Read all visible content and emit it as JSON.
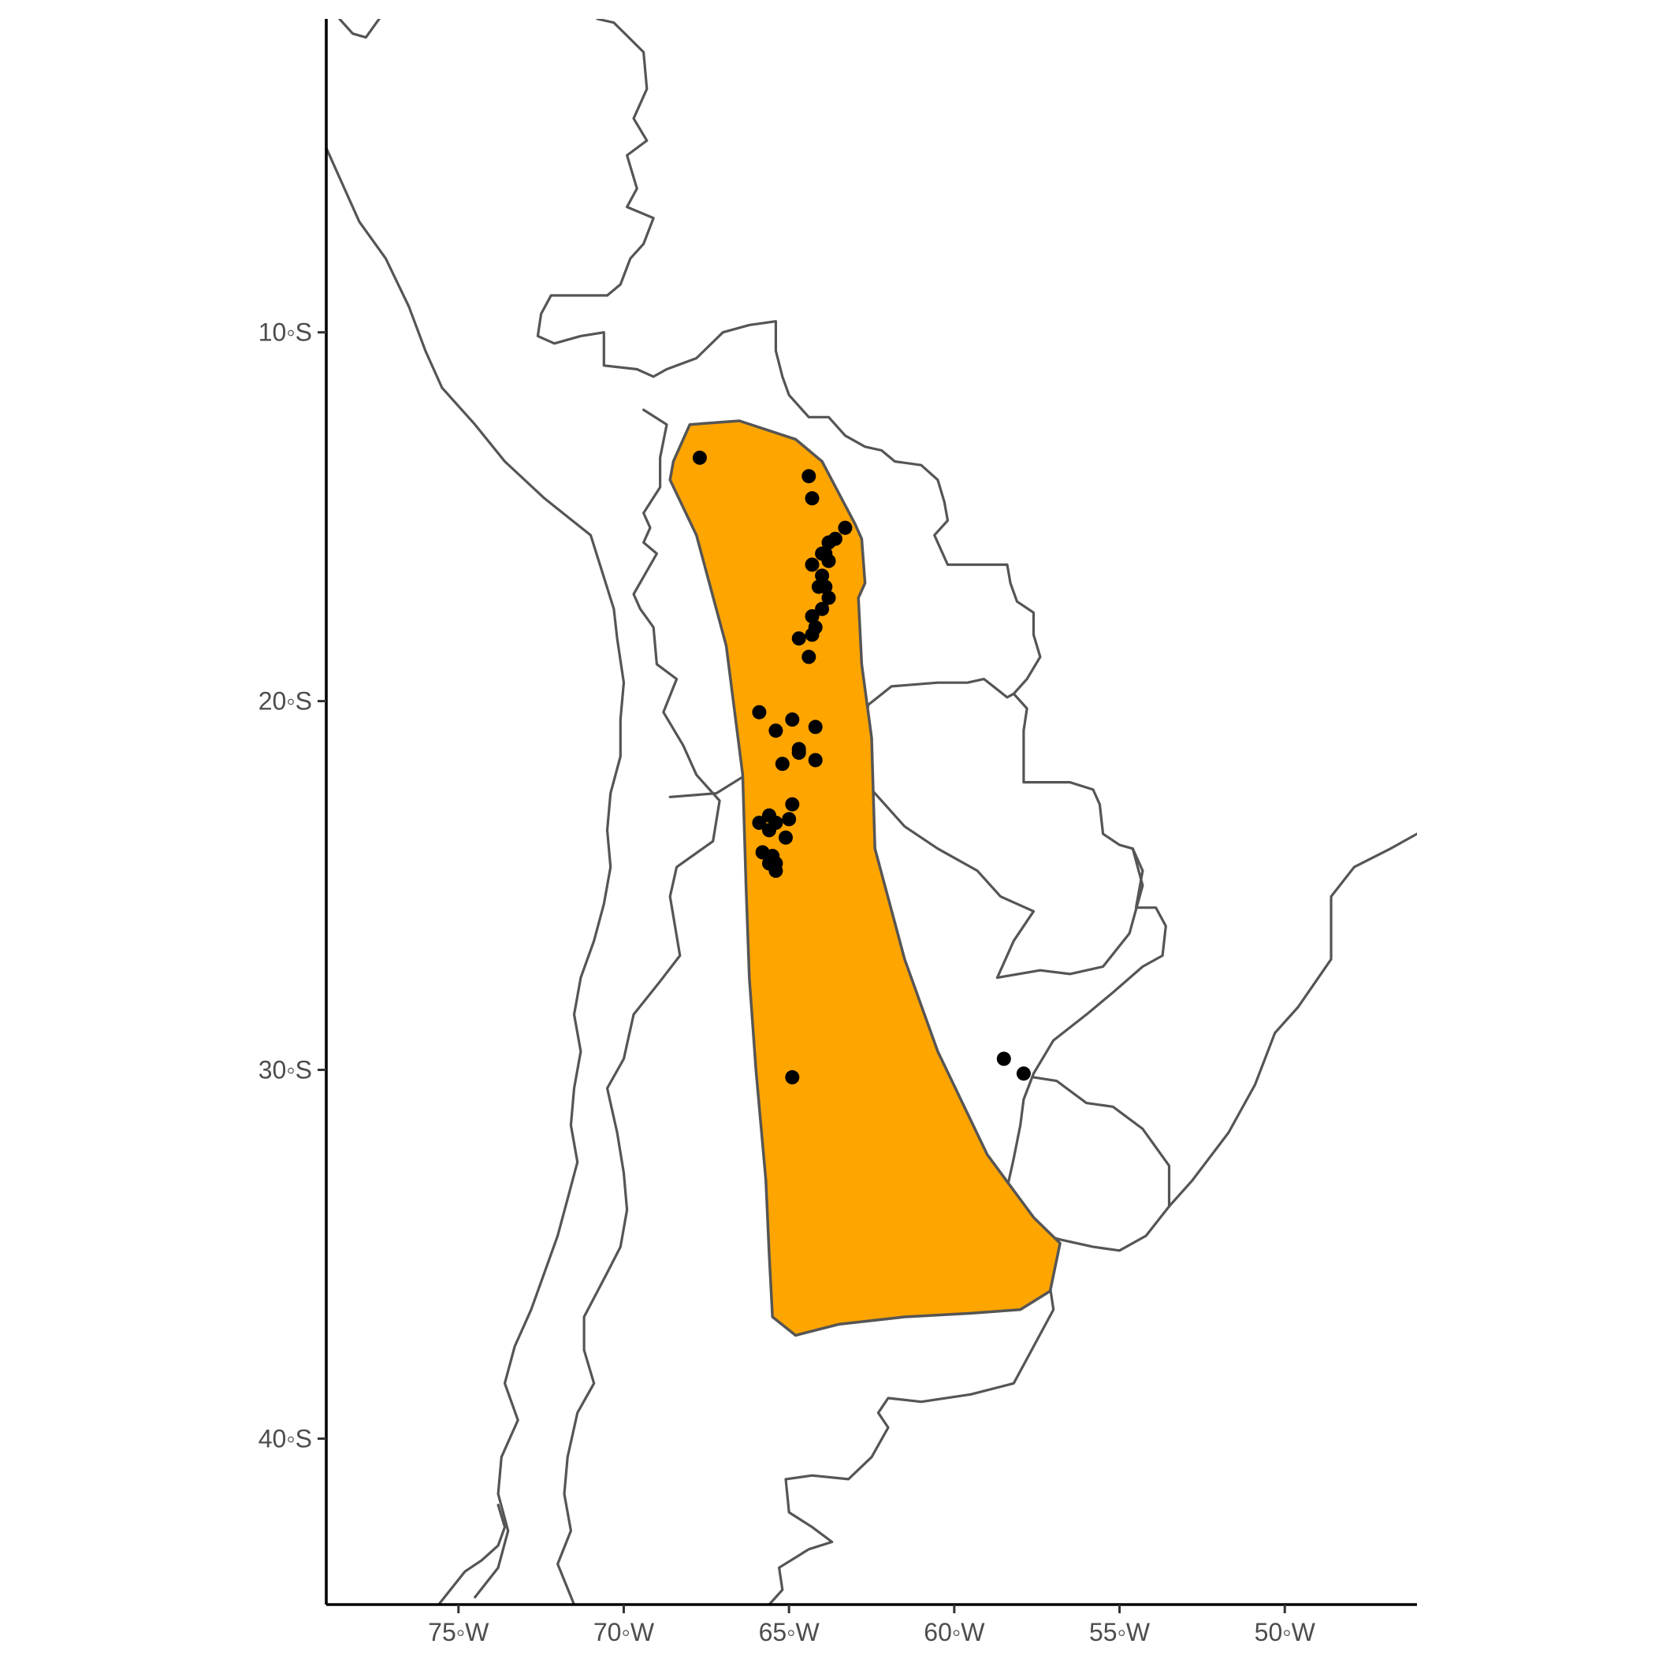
{
  "map": {
    "axes": {
      "x": {
        "range": [
          -79,
          -46
        ],
        "ticks": [
          {
            "value": -75,
            "label": "75◦W"
          },
          {
            "value": -70,
            "label": "70◦W"
          },
          {
            "value": -65,
            "label": "65◦W"
          },
          {
            "value": -60,
            "label": "60◦W"
          },
          {
            "value": -55,
            "label": "55◦W"
          },
          {
            "value": -50,
            "label": "50◦W"
          }
        ]
      },
      "y": {
        "range": [
          -44.5,
          -1.5
        ],
        "ticks": [
          {
            "value": -10,
            "label": "10◦S"
          },
          {
            "value": -20,
            "label": "20◦S"
          },
          {
            "value": -30,
            "label": "30◦S"
          },
          {
            "value": -40,
            "label": "40◦S"
          }
        ]
      }
    },
    "colors": {
      "range_fill": "#FFA500",
      "range_outline": "#555555",
      "border": "#555555",
      "points": "#000000"
    },
    "range_polygon": [
      [
        -68.5,
        -13.5
      ],
      [
        -68.0,
        -12.5
      ],
      [
        -66.5,
        -12.4
      ],
      [
        -64.8,
        -12.9
      ],
      [
        -64.0,
        -13.5
      ],
      [
        -63.0,
        -15.2
      ],
      [
        -62.8,
        -15.6
      ],
      [
        -62.7,
        -16.8
      ],
      [
        -62.9,
        -17.2
      ],
      [
        -62.8,
        -19.0
      ],
      [
        -62.5,
        -21.0
      ],
      [
        -62.4,
        -24.0
      ],
      [
        -61.5,
        -27.0
      ],
      [
        -60.5,
        -29.5
      ],
      [
        -59.0,
        -32.3
      ],
      [
        -57.6,
        -34.0
      ],
      [
        -56.8,
        -34.7
      ],
      [
        -57.1,
        -36.0
      ],
      [
        -58.0,
        -36.5
      ],
      [
        -59.5,
        -36.6
      ],
      [
        -61.5,
        -36.7
      ],
      [
        -63.5,
        -36.9
      ],
      [
        -64.8,
        -37.2
      ],
      [
        -65.5,
        -36.7
      ],
      [
        -65.6,
        -35.0
      ],
      [
        -65.7,
        -33.0
      ],
      [
        -66.0,
        -30.0
      ],
      [
        -66.2,
        -27.5
      ],
      [
        -66.3,
        -25.0
      ],
      [
        -66.4,
        -22.0
      ],
      [
        -66.9,
        -18.5
      ],
      [
        -67.8,
        -15.5
      ],
      [
        -68.6,
        -14.0
      ]
    ],
    "occurrences": [
      [
        -67.7,
        -13.4
      ],
      [
        -64.4,
        -13.9
      ],
      [
        -64.3,
        -14.5
      ],
      [
        -63.3,
        -15.3
      ],
      [
        -63.6,
        -15.6
      ],
      [
        -63.8,
        -15.7
      ],
      [
        -63.9,
        -16.0
      ],
      [
        -64.0,
        -16.0
      ],
      [
        -63.8,
        -16.2
      ],
      [
        -64.3,
        -16.3
      ],
      [
        -64.0,
        -16.6
      ],
      [
        -63.9,
        -16.9
      ],
      [
        -64.1,
        -16.9
      ],
      [
        -63.8,
        -17.2
      ],
      [
        -64.3,
        -17.7
      ],
      [
        -64.2,
        -18.0
      ],
      [
        -64.3,
        -18.2
      ],
      [
        -64.0,
        -17.5
      ],
      [
        -64.7,
        -18.3
      ],
      [
        -64.4,
        -18.8
      ],
      [
        -65.9,
        -20.3
      ],
      [
        -64.9,
        -20.5
      ],
      [
        -64.2,
        -20.7
      ],
      [
        -65.4,
        -20.8
      ],
      [
        -64.7,
        -21.4
      ],
      [
        -64.7,
        -21.3
      ],
      [
        -64.2,
        -21.6
      ],
      [
        -65.2,
        -21.7
      ],
      [
        -64.9,
        -22.8
      ],
      [
        -65.6,
        -23.1
      ],
      [
        -65.0,
        -23.2
      ],
      [
        -65.9,
        -23.3
      ],
      [
        -65.4,
        -23.3
      ],
      [
        -65.6,
        -23.5
      ],
      [
        -65.1,
        -23.7
      ],
      [
        -65.8,
        -24.1
      ],
      [
        -65.5,
        -24.2
      ],
      [
        -65.4,
        -24.4
      ],
      [
        -65.6,
        -24.4
      ],
      [
        -65.4,
        -24.6
      ],
      [
        -58.5,
        -29.7
      ],
      [
        -57.9,
        -30.1
      ],
      [
        -64.9,
        -30.2
      ]
    ],
    "borders": [
      [
        [
          -78.6,
          -1.5
        ],
        [
          -78.2,
          -1.9
        ],
        [
          -77.8,
          -2.0
        ],
        [
          -77.4,
          -1.5
        ]
      ],
      [
        [
          -70.8,
          -1.5
        ],
        [
          -70.3,
          -1.6
        ],
        [
          -69.4,
          -2.4
        ],
        [
          -69.3,
          -3.4
        ],
        [
          -69.7,
          -4.2
        ],
        [
          -69.3,
          -4.8
        ],
        [
          -69.9,
          -5.2
        ],
        [
          -69.6,
          -6.1
        ],
        [
          -69.9,
          -6.6
        ],
        [
          -69.1,
          -6.9
        ],
        [
          -69.4,
          -7.6
        ],
        [
          -69.8,
          -8.0
        ],
        [
          -70.1,
          -8.7
        ],
        [
          -70.5,
          -9.0
        ],
        [
          -71.4,
          -9.0
        ],
        [
          -72.2,
          -9.0
        ],
        [
          -72.5,
          -9.5
        ],
        [
          -72.6,
          -10.1
        ],
        [
          -72.1,
          -10.3
        ],
        [
          -71.3,
          -10.1
        ],
        [
          -70.6,
          -10.0
        ],
        [
          -70.6,
          -10.9
        ],
        [
          -69.6,
          -11.0
        ],
        [
          -69.1,
          -11.2
        ],
        [
          -68.7,
          -11.0
        ],
        [
          -67.8,
          -10.7
        ],
        [
          -67.0,
          -10.0
        ],
        [
          -66.2,
          -9.8
        ],
        [
          -65.4,
          -9.7
        ],
        [
          -65.4,
          -10.5
        ],
        [
          -65.2,
          -11.2
        ],
        [
          -65.0,
          -11.7
        ],
        [
          -64.4,
          -12.3
        ],
        [
          -63.8,
          -12.3
        ],
        [
          -63.3,
          -12.8
        ],
        [
          -62.7,
          -13.1
        ],
        [
          -62.2,
          -13.2
        ],
        [
          -61.8,
          -13.5
        ],
        [
          -61.0,
          -13.6
        ],
        [
          -60.5,
          -14.0
        ],
        [
          -60.3,
          -14.6
        ],
        [
          -60.2,
          -15.1
        ],
        [
          -60.6,
          -15.5
        ],
        [
          -60.2,
          -16.3
        ],
        [
          -58.4,
          -16.3
        ],
        [
          -58.3,
          -16.8
        ],
        [
          -58.1,
          -17.3
        ],
        [
          -57.6,
          -17.6
        ],
        [
          -57.6,
          -18.2
        ],
        [
          -57.4,
          -18.8
        ],
        [
          -57.8,
          -19.4
        ],
        [
          -58.2,
          -19.8
        ],
        [
          -57.8,
          -20.2
        ],
        [
          -57.9,
          -20.8
        ],
        [
          -57.9,
          -22.2
        ],
        [
          -56.5,
          -22.2
        ],
        [
          -55.8,
          -22.4
        ],
        [
          -55.6,
          -22.8
        ],
        [
          -55.5,
          -23.6
        ],
        [
          -55.0,
          -23.9
        ],
        [
          -54.6,
          -24.0
        ],
        [
          -54.3,
          -24.6
        ],
        [
          -54.5,
          -25.6
        ],
        [
          -53.9,
          -25.6
        ],
        [
          -53.6,
          -26.1
        ],
        [
          -53.7,
          -26.9
        ],
        [
          -54.3,
          -27.2
        ],
        [
          -55.2,
          -27.9
        ],
        [
          -56.0,
          -28.5
        ],
        [
          -57.0,
          -29.2
        ],
        [
          -57.6,
          -30.1
        ],
        [
          -57.9,
          -30.8
        ],
        [
          -58.0,
          -31.5
        ],
        [
          -58.2,
          -32.4
        ],
        [
          -58.4,
          -33.2
        ],
        [
          -58.4,
          -34.0
        ]
      ],
      [
        [
          -79,
          -5.0
        ],
        [
          -78.5,
          -6.0
        ],
        [
          -78.0,
          -7.0
        ],
        [
          -77.2,
          -8.0
        ],
        [
          -76.5,
          -9.3
        ],
        [
          -76.0,
          -10.5
        ],
        [
          -75.5,
          -11.5
        ],
        [
          -74.5,
          -12.5
        ],
        [
          -73.6,
          -13.5
        ],
        [
          -72.4,
          -14.5
        ],
        [
          -71.0,
          -15.5
        ],
        [
          -70.3,
          -17.5
        ],
        [
          -70.2,
          -18.3
        ],
        [
          -70.0,
          -19.5
        ],
        [
          -70.1,
          -20.5
        ],
        [
          -70.1,
          -21.5
        ],
        [
          -70.4,
          -22.5
        ],
        [
          -70.5,
          -23.5
        ],
        [
          -70.4,
          -24.5
        ],
        [
          -70.6,
          -25.5
        ],
        [
          -70.9,
          -26.5
        ],
        [
          -71.3,
          -27.5
        ],
        [
          -71.5,
          -28.5
        ],
        [
          -71.3,
          -29.5
        ],
        [
          -71.5,
          -30.5
        ],
        [
          -71.6,
          -31.5
        ],
        [
          -71.4,
          -32.5
        ],
        [
          -71.7,
          -33.5
        ],
        [
          -72.0,
          -34.5
        ],
        [
          -72.4,
          -35.5
        ],
        [
          -72.8,
          -36.5
        ],
        [
          -73.3,
          -37.5
        ],
        [
          -73.6,
          -38.5
        ],
        [
          -73.2,
          -39.5
        ],
        [
          -73.7,
          -40.5
        ],
        [
          -73.8,
          -41.5
        ],
        [
          -73.5,
          -42.5
        ],
        [
          -73.8,
          -43.5
        ],
        [
          -74.5,
          -44.3
        ]
      ],
      [
        [
          -69.4,
          -12.1
        ],
        [
          -68.7,
          -12.5
        ],
        [
          -68.9,
          -13.4
        ],
        [
          -68.9,
          -14.2
        ],
        [
          -69.4,
          -14.9
        ],
        [
          -69.2,
          -15.3
        ],
        [
          -69.4,
          -15.7
        ],
        [
          -69.0,
          -16.0
        ],
        [
          -69.7,
          -17.1
        ],
        [
          -69.5,
          -17.5
        ],
        [
          -69.1,
          -18.0
        ],
        [
          -69.0,
          -19.0
        ],
        [
          -68.4,
          -19.4
        ],
        [
          -68.8,
          -20.3
        ],
        [
          -68.2,
          -21.2
        ],
        [
          -67.8,
          -22.0
        ],
        [
          -67.1,
          -22.7
        ],
        [
          -67.3,
          -23.8
        ],
        [
          -68.4,
          -24.5
        ],
        [
          -68.6,
          -25.3
        ],
        [
          -68.3,
          -26.9
        ],
        [
          -68.9,
          -27.6
        ],
        [
          -69.7,
          -28.5
        ],
        [
          -70.0,
          -29.7
        ],
        [
          -70.5,
          -30.5
        ],
        [
          -70.2,
          -31.7
        ],
        [
          -70.0,
          -32.8
        ],
        [
          -69.9,
          -33.8
        ],
        [
          -70.1,
          -34.8
        ],
        [
          -70.5,
          -35.5
        ],
        [
          -71.2,
          -36.7
        ],
        [
          -71.2,
          -37.6
        ],
        [
          -70.9,
          -38.5
        ],
        [
          -71.4,
          -39.3
        ],
        [
          -71.7,
          -40.5
        ],
        [
          -71.8,
          -41.5
        ],
        [
          -71.6,
          -42.5
        ],
        [
          -72.0,
          -43.4
        ],
        [
          -71.5,
          -44.5
        ]
      ],
      [
        [
          -68.6,
          -22.6
        ],
        [
          -67.2,
          -22.5
        ],
        [
          -66.3,
          -22.0
        ],
        [
          -65.0,
          -22.1
        ],
        [
          -64.5,
          -22.3
        ],
        [
          -64.1,
          -22.6
        ],
        [
          -63.2,
          -22.0
        ],
        [
          -62.8,
          -21.0
        ],
        [
          -62.6,
          -20.1
        ],
        [
          -61.9,
          -19.6
        ],
        [
          -60.5,
          -19.5
        ],
        [
          -59.6,
          -19.5
        ],
        [
          -59.1,
          -19.4
        ],
        [
          -58.4,
          -19.9
        ],
        [
          -58.2,
          -19.8
        ]
      ],
      [
        [
          -62.7,
          -22.2
        ],
        [
          -61.5,
          -23.4
        ],
        [
          -60.5,
          -24.0
        ],
        [
          -59.3,
          -24.6
        ],
        [
          -58.6,
          -25.3
        ],
        [
          -57.6,
          -25.7
        ],
        [
          -58.2,
          -26.5
        ],
        [
          -58.7,
          -27.5
        ],
        [
          -57.4,
          -27.3
        ],
        [
          -56.5,
          -27.4
        ],
        [
          -55.5,
          -27.2
        ],
        [
          -54.7,
          -26.3
        ],
        [
          -54.3,
          -25.0
        ],
        [
          -54.6,
          -24.0
        ]
      ],
      [
        [
          -57.6,
          -30.2
        ],
        [
          -56.9,
          -30.3
        ],
        [
          -56.0,
          -30.9
        ],
        [
          -55.2,
          -31.0
        ],
        [
          -54.3,
          -31.6
        ],
        [
          -53.5,
          -32.6
        ],
        [
          -53.5,
          -33.7
        ]
      ],
      [
        [
          -58.4,
          -33.2
        ],
        [
          -58.4,
          -34.0
        ],
        [
          -57.6,
          -34.4
        ],
        [
          -56.8,
          -34.6
        ],
        [
          -55.8,
          -34.8
        ],
        [
          -55.0,
          -34.9
        ],
        [
          -54.2,
          -34.5
        ],
        [
          -53.5,
          -33.7
        ],
        [
          -52.8,
          -33.0
        ],
        [
          -51.7,
          -31.7
        ],
        [
          -50.9,
          -30.4
        ],
        [
          -50.3,
          -29.0
        ],
        [
          -49.6,
          -28.3
        ],
        [
          -48.6,
          -27.0
        ],
        [
          -48.6,
          -26.0
        ],
        [
          -48.6,
          -25.3
        ],
        [
          -47.9,
          -24.5
        ],
        [
          -46.8,
          -24.0
        ],
        [
          -46.0,
          -23.6
        ]
      ],
      [
        [
          -58.4,
          -34.0
        ],
        [
          -58.9,
          -34.4
        ],
        [
          -57.5,
          -35.5
        ],
        [
          -57.1,
          -35.9
        ],
        [
          -57.0,
          -36.5
        ],
        [
          -57.6,
          -37.5
        ],
        [
          -58.2,
          -38.5
        ],
        [
          -59.5,
          -38.8
        ],
        [
          -61.0,
          -39.0
        ],
        [
          -62.0,
          -38.9
        ],
        [
          -62.3,
          -39.3
        ],
        [
          -62.0,
          -39.7
        ],
        [
          -62.5,
          -40.5
        ],
        [
          -63.2,
          -41.1
        ],
        [
          -64.3,
          -41.0
        ],
        [
          -65.1,
          -41.1
        ],
        [
          -65.0,
          -42.0
        ],
        [
          -64.3,
          -42.4
        ],
        [
          -63.7,
          -42.8
        ],
        [
          -64.4,
          -43.0
        ],
        [
          -65.3,
          -43.5
        ],
        [
          -65.2,
          -44.1
        ],
        [
          -65.6,
          -44.5
        ]
      ],
      [
        [
          -75.6,
          -44.5
        ],
        [
          -74.8,
          -43.6
        ],
        [
          -74.3,
          -43.3
        ],
        [
          -73.8,
          -42.9
        ],
        [
          -73.6,
          -42.4
        ],
        [
          -73.8,
          -41.8
        ]
      ]
    ]
  }
}
